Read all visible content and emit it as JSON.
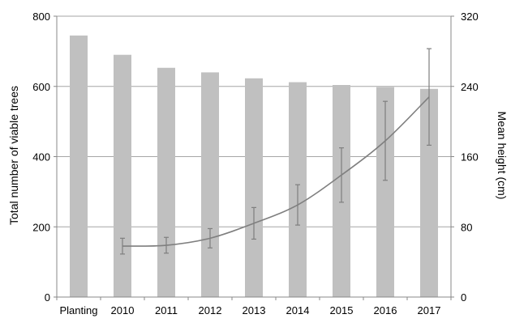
{
  "chart_data": {
    "type": "bar",
    "title": "",
    "categories": [
      "Planting",
      "2010",
      "2011",
      "2012",
      "2013",
      "2014",
      "2015",
      "2016",
      "2017"
    ],
    "ylabel": "Total number of viable trees",
    "y2label": "Mean height (cm)",
    "ylim": [
      0,
      800
    ],
    "y2lim": [
      0,
      320
    ],
    "yticks": [
      "0",
      "200",
      "400",
      "600",
      "800"
    ],
    "y2ticks": [
      "0",
      "80",
      "160",
      "240",
      "320"
    ],
    "grid": true,
    "legend": "none",
    "colors": {
      "bars": "#c0c0c0",
      "line": "#7f7f7f",
      "grid": "#a6a6a6"
    },
    "series": [
      {
        "type": "bar",
        "axis": "left",
        "values": [
          745,
          690,
          653,
          640,
          623,
          612,
          604,
          598,
          593
        ]
      },
      {
        "type": "line",
        "axis": "right",
        "x": [
          "2010",
          "2011",
          "2012",
          "2013",
          "2014",
          "2015",
          "2016",
          "2017"
        ],
        "values": [
          58,
          59,
          67,
          84,
          105,
          139,
          178,
          228
        ],
        "error": [
          9,
          9,
          11,
          18,
          23,
          31,
          45,
          55
        ]
      }
    ]
  }
}
